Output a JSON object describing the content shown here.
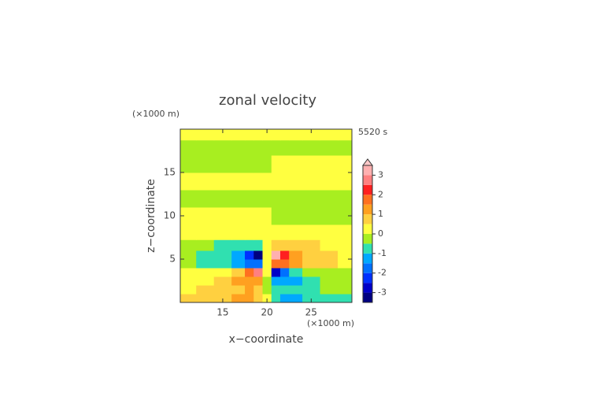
{
  "chart_data": {
    "type": "contour",
    "title": "zonal velocity",
    "xlabel": "x−coordinate",
    "ylabel": "z−coordinate",
    "x_unit_label": "(×1000 m)",
    "y_unit_label": "(×1000 m)",
    "time_label": "5520 s",
    "xlim": [
      10.2,
      29.6
    ],
    "ylim": [
      0,
      20
    ],
    "xticks": [
      15,
      20,
      25
    ],
    "yticks": [
      5,
      10,
      15
    ],
    "x": [
      11,
      13,
      15,
      17,
      18,
      19,
      20,
      21,
      22,
      23,
      25,
      27,
      29
    ],
    "y": [
      0.5,
      1.5,
      2.5,
      3.5,
      4.5,
      5.5,
      6.5,
      8,
      10,
      12,
      14,
      16,
      18,
      19.5
    ],
    "z": [
      [
        0.7,
        0.7,
        0.7,
        1.2,
        1.2,
        0.7,
        0.2,
        -0.7,
        -1.2,
        -1.2,
        -0.7,
        -0.7,
        -0.7
      ],
      [
        0.2,
        0.7,
        0.7,
        0.7,
        1.2,
        0.7,
        -0.2,
        -0.7,
        -0.7,
        -0.7,
        -0.7,
        -0.2,
        -0.2
      ],
      [
        0.2,
        0.2,
        0.7,
        1.2,
        1.2,
        1.2,
        -0.2,
        -1.2,
        -1.2,
        -1.2,
        -0.7,
        -0.2,
        -0.2
      ],
      [
        0.2,
        0.2,
        0.2,
        0.7,
        1.7,
        2.7,
        0.2,
        -2.7,
        -1.7,
        -0.7,
        -0.2,
        -0.2,
        -0.2
      ],
      [
        -0.2,
        -0.7,
        -0.7,
        -1.2,
        -1.7,
        -1.7,
        0.2,
        1.7,
        1.7,
        1.2,
        0.7,
        0.7,
        0.2
      ],
      [
        -0.2,
        -0.7,
        -0.7,
        -1.2,
        -2.2,
        -3.4,
        0.2,
        3.4,
        2.2,
        1.2,
        0.7,
        0.7,
        0.2
      ],
      [
        -0.2,
        -0.2,
        -0.7,
        -0.7,
        -0.7,
        -0.7,
        0.2,
        0.7,
        0.7,
        0.7,
        0.7,
        0.2,
        0.2
      ],
      [
        0.2,
        0.2,
        0.2,
        0.2,
        0.2,
        0.2,
        0.2,
        0.2,
        0.2,
        0.2,
        0.2,
        0.2,
        0.2
      ],
      [
        0.2,
        0.2,
        0.2,
        0.2,
        0.2,
        0.2,
        0.2,
        -0.2,
        -0.2,
        -0.2,
        -0.2,
        -0.2,
        -0.2
      ],
      [
        -0.2,
        -0.2,
        -0.2,
        -0.2,
        -0.2,
        -0.2,
        -0.2,
        -0.2,
        -0.2,
        -0.2,
        -0.2,
        -0.2,
        -0.2
      ],
      [
        0.2,
        0.2,
        0.2,
        0.2,
        0.2,
        0.2,
        0.2,
        0.2,
        0.2,
        0.2,
        0.2,
        0.2,
        0.2
      ],
      [
        -0.2,
        -0.2,
        -0.2,
        -0.2,
        -0.2,
        -0.2,
        -0.2,
        0.2,
        0.2,
        0.2,
        0.2,
        0.2,
        0.2
      ],
      [
        -0.2,
        -0.2,
        -0.2,
        -0.2,
        -0.2,
        -0.2,
        -0.2,
        -0.2,
        -0.2,
        -0.2,
        -0.2,
        -0.2,
        -0.2
      ],
      [
        0.2,
        0.2,
        0.2,
        0.2,
        0.2,
        0.2,
        0.2,
        0.2,
        0.2,
        0.2,
        0.2,
        0.2,
        0.2
      ]
    ],
    "colorbar": {
      "levels": [
        -3.5,
        -3,
        -2.5,
        -2,
        -1.5,
        -1,
        -0.5,
        0,
        0.5,
        1,
        1.5,
        2,
        2.5,
        3,
        3.5
      ],
      "colors": [
        "#000080",
        "#0000c8",
        "#0030ff",
        "#0070ff",
        "#00a8ff",
        "#30e0b0",
        "#a8ee20",
        "#ffff40",
        "#ffd040",
        "#ffa020",
        "#ff7020",
        "#ff2020",
        "#ff8080",
        "#ffb0b0"
      ],
      "ticks": [
        -3,
        -2,
        -1,
        0,
        1,
        2,
        3
      ]
    }
  }
}
